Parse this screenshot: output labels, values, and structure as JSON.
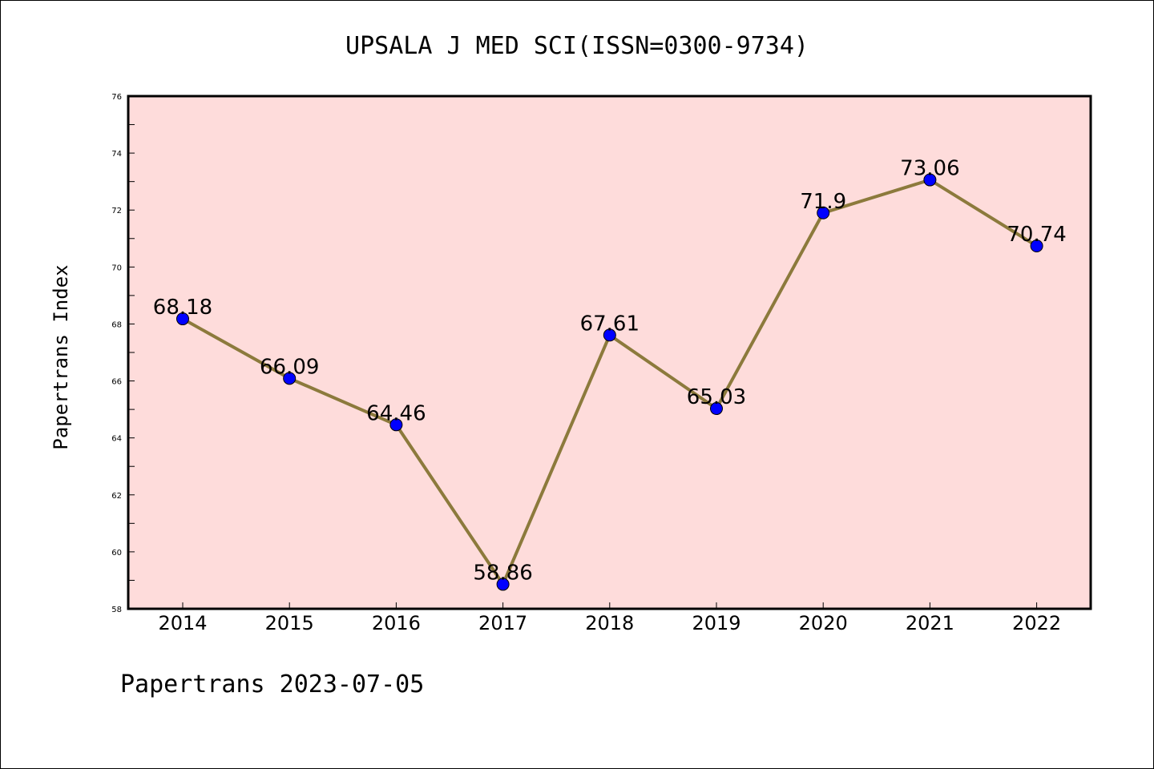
{
  "chart_data": {
    "type": "line",
    "title": "UPSALA J MED SCI(ISSN=0300-9734)",
    "ylabel": "Papertrans Index",
    "xlabel": "",
    "categories": [
      "2014",
      "2015",
      "2016",
      "2017",
      "2018",
      "2019",
      "2020",
      "2021",
      "2022"
    ],
    "values": [
      68.18,
      66.09,
      64.46,
      58.86,
      67.61,
      65.03,
      71.9,
      73.06,
      70.74
    ],
    "data_labels": [
      "68.18",
      "66.09",
      "64.46",
      "58.86",
      "67.61",
      "65.03",
      "71.9",
      "73.06",
      "70.74"
    ],
    "ylim": [
      58,
      76
    ],
    "yticks": [
      "58",
      "60",
      "62",
      "64",
      "66",
      "68",
      "70",
      "72",
      "74",
      "76"
    ],
    "grid": false,
    "legend": "none",
    "colors": {
      "plot_background": "#fedcdb",
      "line": "#8c7a3c",
      "marker": "#0000ff"
    }
  },
  "footer": "Papertrans 2023-07-05"
}
